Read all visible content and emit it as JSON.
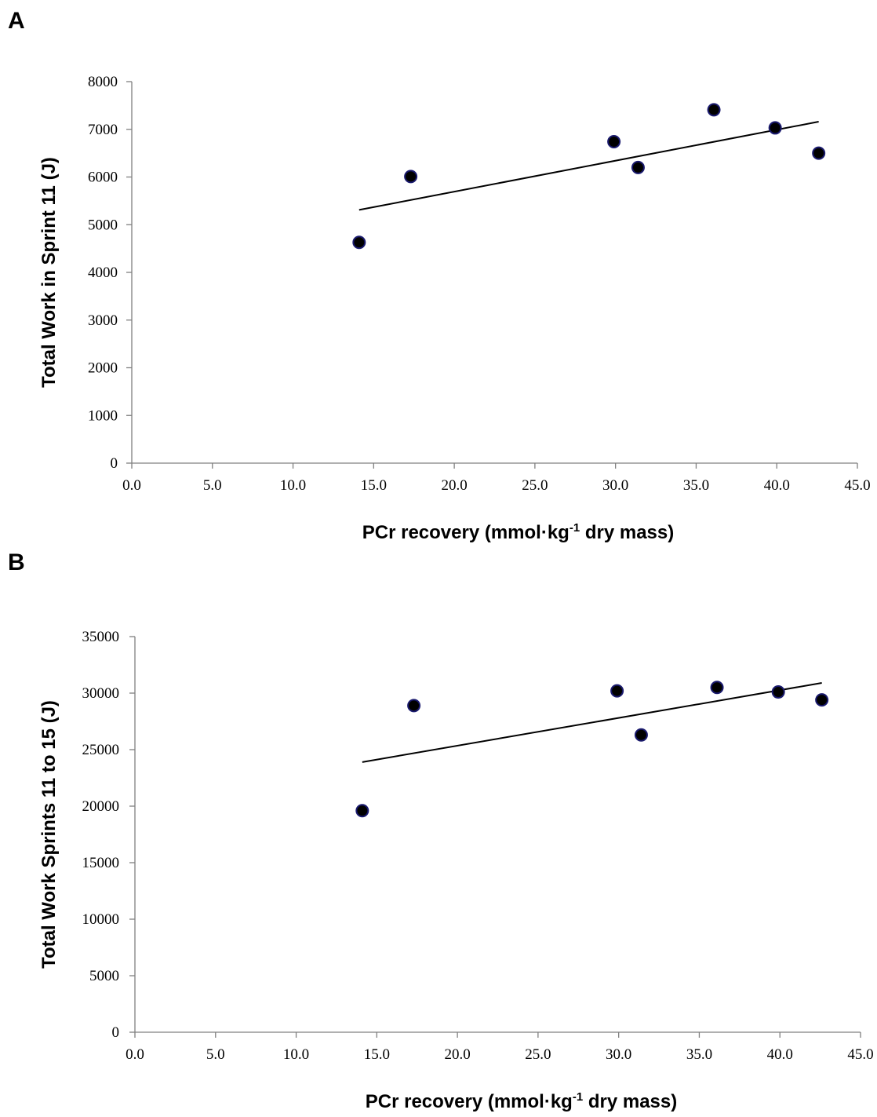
{
  "chart_data": [
    {
      "panel": "A",
      "type": "scatter",
      "xlabel": "PCr recovery (mmol·kg",
      "xlabel_sup": "-1",
      "xlabel_suffix": " dry mass)",
      "ylabel": "Total Work in Sprint 11 (J)",
      "xlim": [
        0,
        45
      ],
      "ylim": [
        0,
        8000
      ],
      "x_ticks": [
        "0.0",
        "5.0",
        "10.0",
        "15.0",
        "20.0",
        "25.0",
        "30.0",
        "35.0",
        "40.0",
        "45.0"
      ],
      "y_ticks": [
        "0",
        "1000",
        "2000",
        "3000",
        "4000",
        "5000",
        "6000",
        "7000",
        "8000"
      ],
      "points": [
        {
          "x": 14.1,
          "y": 4630
        },
        {
          "x": 17.3,
          "y": 6010
        },
        {
          "x": 29.9,
          "y": 6740
        },
        {
          "x": 31.4,
          "y": 6200
        },
        {
          "x": 36.1,
          "y": 7410
        },
        {
          "x": 39.9,
          "y": 7030
        },
        {
          "x": 42.6,
          "y": 6500
        }
      ],
      "trendline": {
        "x": [
          14.1,
          42.6
        ],
        "y": [
          5310,
          7160
        ]
      }
    },
    {
      "panel": "B",
      "type": "scatter",
      "xlabel": "PCr recovery (mmol·kg",
      "xlabel_sup": "-1",
      "xlabel_suffix": " dry mass)",
      "ylabel": "Total Work Sprints 11 to 15 (J)",
      "xlim": [
        0,
        45
      ],
      "ylim": [
        0,
        35000
      ],
      "x_ticks": [
        "0.0",
        "5.0",
        "10.0",
        "15.0",
        "20.0",
        "25.0",
        "30.0",
        "35.0",
        "40.0",
        "45.0"
      ],
      "y_ticks": [
        "0",
        "5000",
        "10000",
        "15000",
        "20000",
        "25000",
        "30000",
        "35000"
      ],
      "points": [
        {
          "x": 14.1,
          "y": 19600
        },
        {
          "x": 17.3,
          "y": 28900
        },
        {
          "x": 29.9,
          "y": 30200
        },
        {
          "x": 31.4,
          "y": 26300
        },
        {
          "x": 36.1,
          "y": 30500
        },
        {
          "x": 39.9,
          "y": 30100
        },
        {
          "x": 42.6,
          "y": 29400
        }
      ],
      "trendline": {
        "x": [
          14.1,
          42.6
        ],
        "y": [
          23900,
          30900
        ]
      }
    }
  ]
}
